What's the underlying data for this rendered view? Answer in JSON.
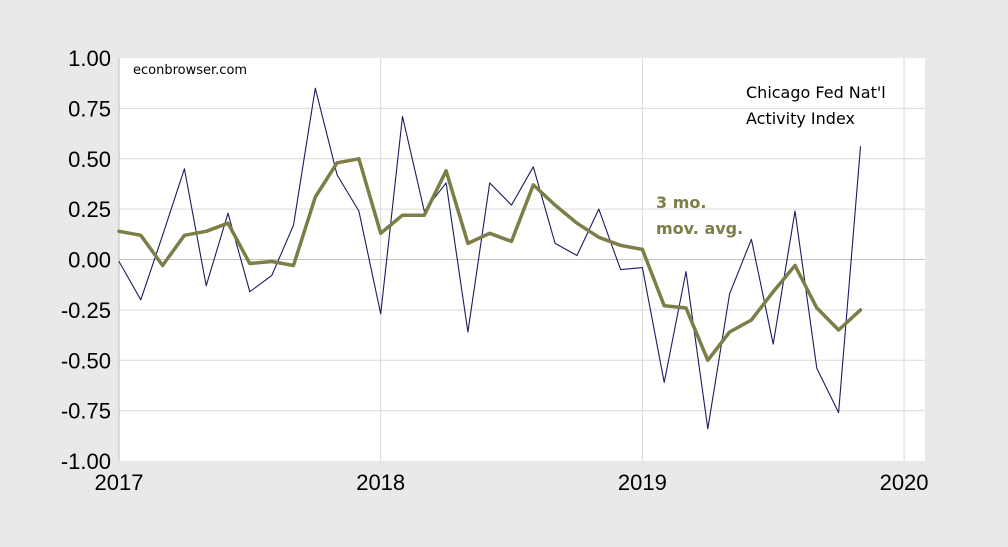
{
  "chart_data": {
    "type": "line",
    "title": "",
    "xlabel": "",
    "ylabel": "",
    "xlim": [
      2017.0,
      2020.08
    ],
    "ylim": [
      -1.0,
      1.0
    ],
    "x_ticks": [
      "2017",
      "2018",
      "2019",
      "2020"
    ],
    "y_ticks": [
      "1.00",
      "0.75",
      "0.50",
      "0.25",
      "0.00",
      "-0.25",
      "-0.50",
      "-0.75",
      "-1.00"
    ],
    "grid": true,
    "annotations": {
      "source": "econbrowser.com",
      "index_label_line1": "Chicago Fed Nat'l",
      "index_label_line2": "Activity Index",
      "avg_label_line1": "3 mo.",
      "avg_label_line2": "mov. avg."
    },
    "colors": {
      "index": "#1c1c5e",
      "avg": "#7d7d47",
      "plot_bg": "#ffffff",
      "page_bg": "#e9e9e9",
      "grid": "#d9d9d9"
    },
    "series": [
      {
        "key": "index",
        "dates": [
          "2017-01",
          "2017-02",
          "2017-03",
          "2017-04",
          "2017-05",
          "2017-06",
          "2017-07",
          "2017-08",
          "2017-09",
          "2017-10",
          "2017-11",
          "2017-12",
          "2018-01",
          "2018-02",
          "2018-03",
          "2018-04",
          "2018-05",
          "2018-06",
          "2018-07",
          "2018-08",
          "2018-09",
          "2018-10",
          "2018-11",
          "2018-12",
          "2019-01",
          "2019-02",
          "2019-03",
          "2019-04",
          "2019-05",
          "2019-06",
          "2019-07",
          "2019-08",
          "2019-09",
          "2019-10",
          "2019-11"
        ],
        "values": [
          -0.01,
          -0.2,
          0.12,
          0.45,
          -0.13,
          0.23,
          -0.16,
          -0.08,
          0.17,
          0.85,
          0.42,
          0.24,
          -0.27,
          0.71,
          0.24,
          0.38,
          -0.36,
          0.38,
          0.27,
          0.46,
          0.08,
          0.02,
          0.25,
          -0.05,
          -0.04,
          -0.61,
          -0.06,
          -0.84,
          -0.17,
          0.1,
          -0.42,
          0.24,
          -0.54,
          -0.76,
          0.56
        ]
      },
      {
        "key": "avg",
        "dates": [
          "2017-01",
          "2017-02",
          "2017-03",
          "2017-04",
          "2017-05",
          "2017-06",
          "2017-07",
          "2017-08",
          "2017-09",
          "2017-10",
          "2017-11",
          "2017-12",
          "2018-01",
          "2018-02",
          "2018-03",
          "2018-04",
          "2018-05",
          "2018-06",
          "2018-07",
          "2018-08",
          "2018-09",
          "2018-10",
          "2018-11",
          "2018-12",
          "2019-01",
          "2019-02",
          "2019-03",
          "2019-04",
          "2019-05",
          "2019-06",
          "2019-07",
          "2019-08",
          "2019-09",
          "2019-10",
          "2019-11"
        ],
        "values": [
          0.14,
          0.12,
          -0.03,
          0.12,
          0.14,
          0.18,
          -0.02,
          -0.01,
          -0.03,
          0.31,
          0.48,
          0.5,
          0.13,
          0.22,
          0.22,
          0.44,
          0.08,
          0.13,
          0.09,
          0.37,
          0.27,
          0.18,
          0.11,
          0.07,
          0.05,
          -0.23,
          -0.24,
          -0.5,
          -0.36,
          -0.3,
          -0.16,
          -0.03,
          -0.24,
          -0.35,
          -0.25
        ]
      }
    ]
  }
}
